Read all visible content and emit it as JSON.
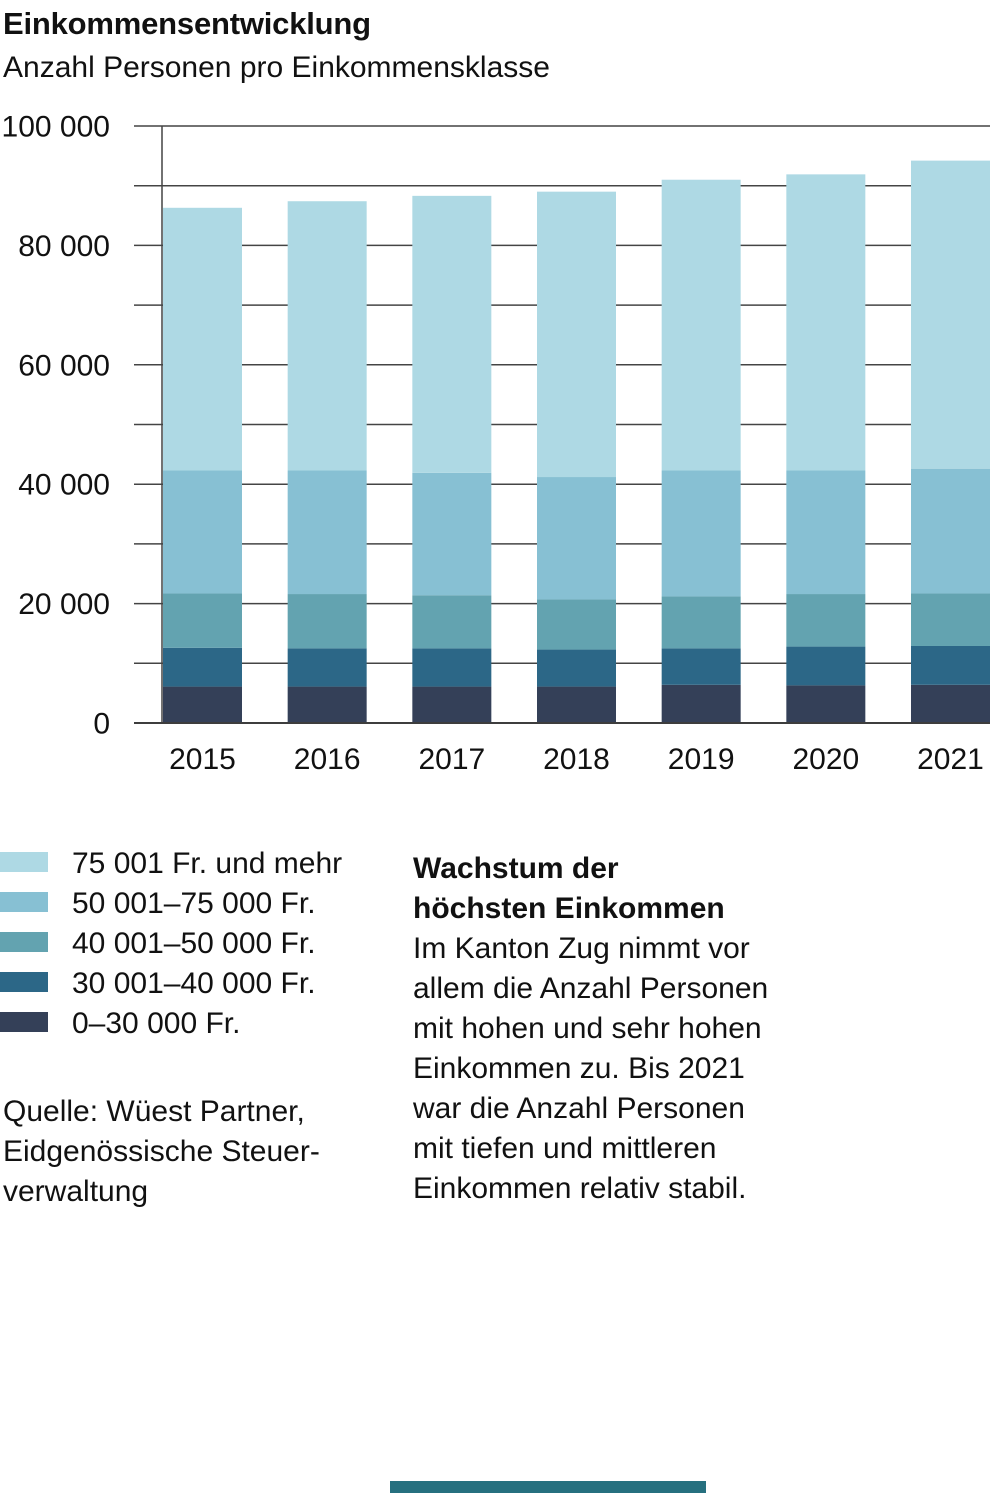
{
  "header": {
    "title": "Einkommensentwicklung",
    "subtitle": "Anzahl Personen pro Einkommensklasse"
  },
  "chart_data": {
    "type": "bar",
    "stacked": true,
    "title": "Einkommensentwicklung",
    "subtitle": "Anzahl Personen pro Einkommensklasse",
    "xlabel": "",
    "ylabel": "Anzahl Personen",
    "categories": [
      "2015",
      "2016",
      "2017",
      "2018",
      "2019",
      "2020",
      "2021"
    ],
    "series": [
      {
        "name": "0–30 000 Fr.",
        "color": "#344058",
        "values": [
          6100,
          6100,
          6100,
          6100,
          6400,
          6300,
          6400
        ]
      },
      {
        "name": "30 001–40 000 Fr.",
        "color": "#2c6787",
        "values": [
          6500,
          6400,
          6400,
          6200,
          6100,
          6500,
          6500
        ]
      },
      {
        "name": "40 001–50 000 Fr.",
        "color": "#63a3b0",
        "values": [
          9100,
          9100,
          8900,
          8400,
          8700,
          8800,
          8800
        ]
      },
      {
        "name": "50 001–75 000 Fr.",
        "color": "#87c0d3",
        "values": [
          20600,
          20700,
          20500,
          20500,
          21100,
          20700,
          20900
        ]
      },
      {
        "name": "75 001 Fr. und mehr",
        "color": "#aed9e4",
        "values": [
          44000,
          45100,
          46400,
          47800,
          48700,
          49600,
          51600
        ]
      }
    ],
    "totals": [
      86300,
      87400,
      88300,
      89000,
      91000,
      91900,
      94200
    ],
    "ylim": [
      0,
      100000
    ],
    "ygrid_step": 10000,
    "yticks": [
      {
        "value": 0,
        "label": "0"
      },
      {
        "value": 20000,
        "label": "20 000"
      },
      {
        "value": 40000,
        "label": "40 000"
      },
      {
        "value": 60000,
        "label": "60 000"
      },
      {
        "value": 80000,
        "label": "80 000"
      },
      {
        "value": 100000,
        "label": "100 000"
      }
    ],
    "grid": "horizontal gridlines every 10 000, drawn behind bars",
    "legend_position": "below-left"
  },
  "legend": {
    "items": [
      {
        "label": "75 001 Fr. und mehr",
        "color": "#aed9e4"
      },
      {
        "label": "50 001–75 000 Fr.",
        "color": "#87c0d3"
      },
      {
        "label": "40 001–50 000 Fr.",
        "color": "#63a3b0"
      },
      {
        "label": "30 001–40 000 Fr.",
        "color": "#2c6787"
      },
      {
        "label": "0–30 000 Fr.",
        "color": "#344058"
      }
    ]
  },
  "source": {
    "lines": [
      "Quelle: Wüest Partner,",
      "Eidgenössische Steuer-",
      "verwaltung"
    ]
  },
  "commentary": {
    "heading_lines": [
      "Wachstum der",
      "höchsten Einkommen"
    ],
    "body_lines": [
      "Im Kanton Zug nimmt vor",
      "allem die Anzahl Personen",
      "mit hohen und sehr hohen",
      "Einkommen zu. Bis 2021",
      "war die Anzahl Personen",
      "mit tiefen und mittleren",
      "Einkommen relativ stabil."
    ]
  },
  "footer": {
    "accent_color": "#26707f"
  },
  "colors": {
    "gridline": "#444444",
    "text": "#111111",
    "background": "#ffffff"
  }
}
